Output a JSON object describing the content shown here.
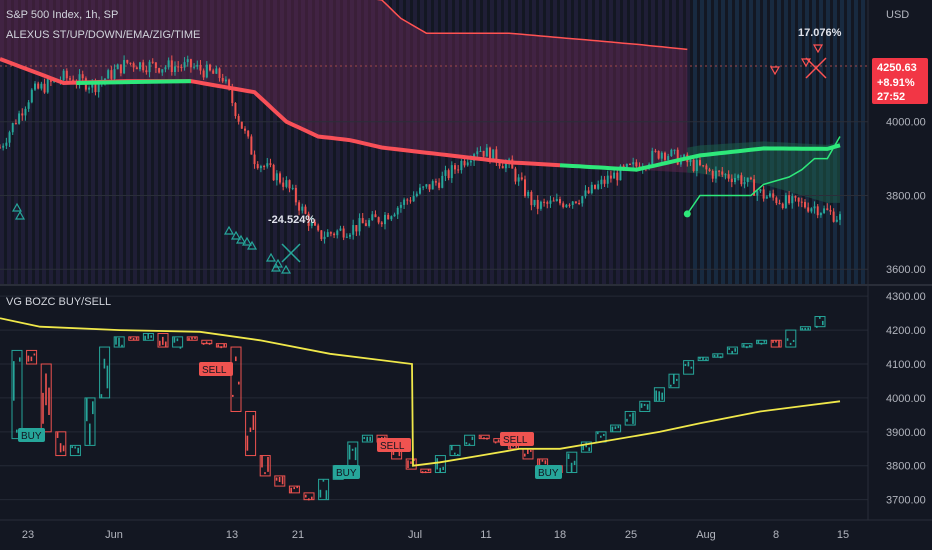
{
  "header": {
    "symbol": "S&P 500 Index, 1h, SP",
    "indicator": "ALEXUS ST/UP/DOWN/EMA/ZIG/TIME",
    "currency": "USD",
    "lower_title": "VG BOZC BUY/SELL"
  },
  "price_tag": {
    "price": "4250.63",
    "change": "+8.91%",
    "countdown": "27:52",
    "color": "#f23645"
  },
  "annotations": {
    "drop": "-24.524%",
    "rise": "17.076%"
  },
  "colors": {
    "bg": "#131722",
    "bull": "#26a69a",
    "bear": "#ef5350",
    "ema_up": "#2ee87a",
    "ema_down": "#f85058",
    "yellow": "#f0e84a",
    "stop": "#ff5252"
  },
  "chart_data": [
    {
      "type": "line",
      "title": "S&P 500 Index, 1h, SP",
      "ylabel": "USD",
      "ylim": [
        3560,
        4330
      ],
      "y_ticks": [
        "4000.00",
        "3800.00",
        "3600.00"
      ],
      "x_ticks": [
        "23",
        "Jun",
        "13",
        "21",
        "Jul",
        "11",
        "18",
        "25",
        "Aug",
        "8",
        "15"
      ],
      "series": [
        {
          "name": "price_close",
          "x": [
            0,
            5,
            10,
            15,
            20,
            25,
            30,
            35,
            40,
            45,
            50,
            55,
            60,
            65,
            70,
            75,
            80,
            84,
            88,
            92,
            96,
            100,
            104,
            108,
            112,
            116,
            120,
            124,
            128,
            132
          ],
          "values": [
            3930,
            4080,
            4120,
            4100,
            4160,
            4150,
            4150,
            4120,
            3900,
            3830,
            3690,
            3710,
            3740,
            3800,
            3850,
            3930,
            3880,
            3770,
            3780,
            3800,
            3850,
            3880,
            3920,
            3890,
            3860,
            3850,
            3800,
            3780,
            3770,
            3740
          ]
        },
        {
          "name": "ema",
          "x": [
            0,
            10,
            20,
            30,
            40,
            45,
            50,
            55,
            60,
            70,
            80,
            90,
            100,
            110,
            120,
            130
          ],
          "values": [
            4170,
            4105,
            4110,
            4110,
            4080,
            4000,
            3960,
            3950,
            3930,
            3910,
            3890,
            3880,
            3870,
            3860,
            3830,
            3780
          ]
        },
        {
          "name": "stop_line",
          "x": [
            0,
            40,
            60,
            63,
            67,
            80,
            100,
            120,
            132
          ],
          "values": [
            4380,
            4380,
            4330,
            4280,
            4240,
            4240,
            4210,
            4175,
            4175
          ]
        }
      ]
    },
    {
      "type": "line",
      "title": "VG BOZC BUY/SELL",
      "ylim": [
        3640,
        4330
      ],
      "y_ticks": [
        "4300.00",
        "4200.00",
        "4100.00",
        "4000.00",
        "3900.00",
        "3800.00",
        "3700.00"
      ],
      "signals": [
        {
          "label": "BUY",
          "kind": "buy"
        },
        {
          "label": "SELL",
          "kind": "sell"
        },
        {
          "label": "BUY",
          "kind": "buy"
        },
        {
          "label": "SELL",
          "kind": "sell"
        },
        {
          "label": "SELL",
          "kind": "sell"
        },
        {
          "label": "BUY",
          "kind": "buy"
        }
      ]
    }
  ]
}
